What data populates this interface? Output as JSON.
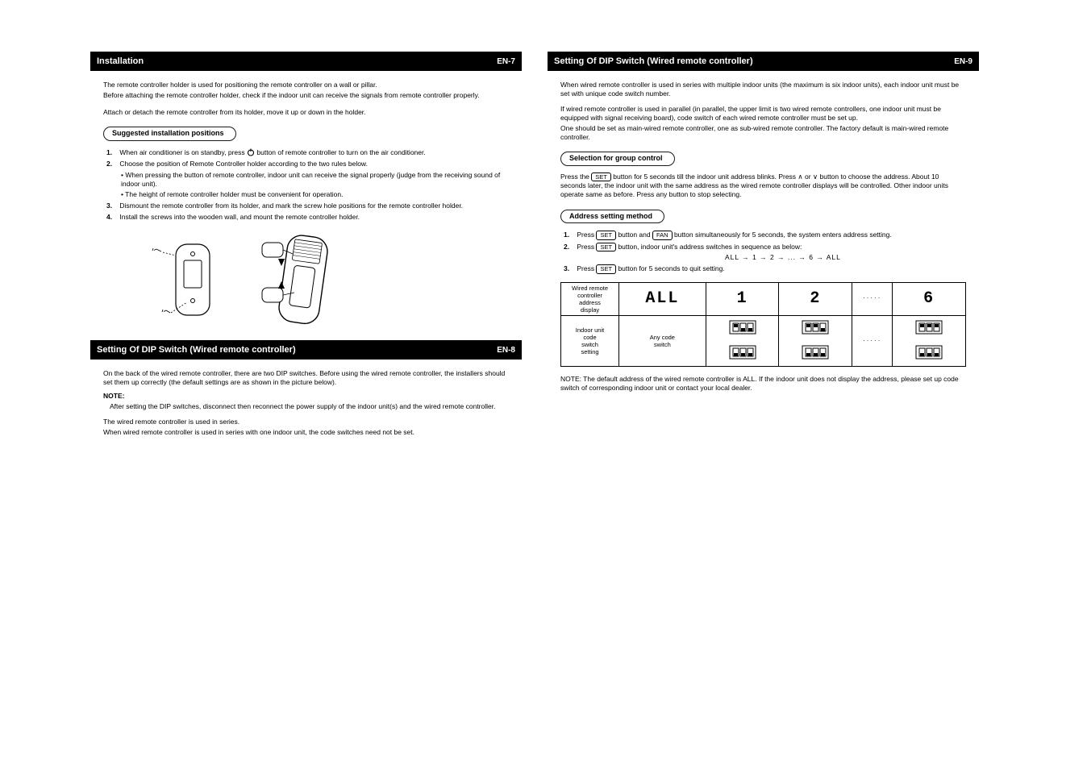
{
  "left": {
    "header": {
      "title": "Installation",
      "page": "EN-7"
    },
    "intro": [
      "The remote controller holder is used for positioning the remote controller on a wall or pillar.",
      "Before attaching the remote controller holder, check if the indoor unit can receive the signals from remote controller properly."
    ],
    "attach_caption": "Attach or detach the remote controller from its holder, move it up or down in the holder.",
    "pill": "Suggested installation positions",
    "steps": [
      {
        "num": "1.",
        "text_before": "When air conditioner is on standby, press ",
        "text_after": " button of remote controller to turn on the air conditioner."
      },
      {
        "num": "2.",
        "text_before": "Choose the position of Remote Controller holder according to the two rules below."
      },
      {
        "num": "3.",
        "text_before": "Dismount the remote controller from its holder, and mark the screw hole positions for the remote controller holder."
      },
      {
        "num": "4.",
        "text_before": "Install the screws into the wooden wall, and mount the remote controller holder."
      }
    ],
    "rules": [
      "• When pressing the button of remote controller, indoor unit can receive the signal properly (judge from the receiving sound of indoor unit).",
      "• The height of remote controller holder must be convenient for operation."
    ],
    "header2": {
      "title": "Setting Of DIP Switch (Wired remote controller)",
      "page": "EN-8"
    },
    "para2": [
      "On the back of the wired remote controller, there are two DIP switches. Before using the wired remote controller, the installers should set them up correctly (the default settings are as shown in the picture below).",
      "After setting the DIP switches, disconnect then reconnect the power supply of the indoor unit(s) and the wired remote controller.",
      "The wired remote controller is used in series.",
      "When wired remote controller is used in series with one indoor unit, the code switches need not be set."
    ]
  },
  "right": {
    "header": {
      "title": "Setting Of DIP Switch (Wired remote controller)",
      "page": "EN-9"
    },
    "intro": "When wired remote controller is used in series with multiple indoor units (the maximum is six indoor units), each indoor unit must be set with unique code switch number.",
    "para2": [
      "If wired remote controller is used in parallel (in parallel, the upper limit is two wired remote controllers, one indoor unit must be equipped with signal receiving board), code switch of each wired remote controller must be set up.",
      "One should be set as main-wired remote controller, one as sub-wired remote controller. The factory default is main-wired remote controller."
    ],
    "pill1": "Selection for group control",
    "sel_text_before": "Press the ",
    "sel_btn": "SET",
    "sel_text_after": " button for 5 seconds till the indoor unit address blinks. Press ∧ or ∨ button to choose the address. About 10 seconds later, the indoor unit with the same address as the wired remote controller displays will be controlled. Other indoor units operate same as before. Press any button to stop selecting.",
    "pill2": "Address setting method",
    "addr_steps": [
      {
        "n": "1.",
        "before": "Press ",
        "btn": "SET",
        "mid": " button and ",
        "btn2": "FAN",
        "after": " button simultaneously for 5 seconds, the system enters address setting."
      },
      {
        "n": "2.",
        "before": "Press ",
        "btn": "SET",
        "after_html": " button, indoor unit's address switches in sequence as below:"
      },
      {
        "seq": "ALL → 1 → 2 → ... → 6 → ALL"
      },
      {
        "n": "3.",
        "before": "Press ",
        "btn": "SET",
        "after": " button for 5 seconds to quit setting."
      }
    ],
    "table": {
      "row1_label": "Wired remote\ncontroller\naddress\ndisplay",
      "row2_label": "Indoor unit\ncode\nswitch\nsetting",
      "cols": [
        "ALL",
        "1",
        "2",
        "·····",
        "6"
      ],
      "row2_note": "Any code\nswitch"
    },
    "bottom_note": "NOTE: The default address of the wired remote controller is ALL. If the indoor unit does not display the address, please set up code switch of corresponding indoor unit or contact your local dealer."
  }
}
